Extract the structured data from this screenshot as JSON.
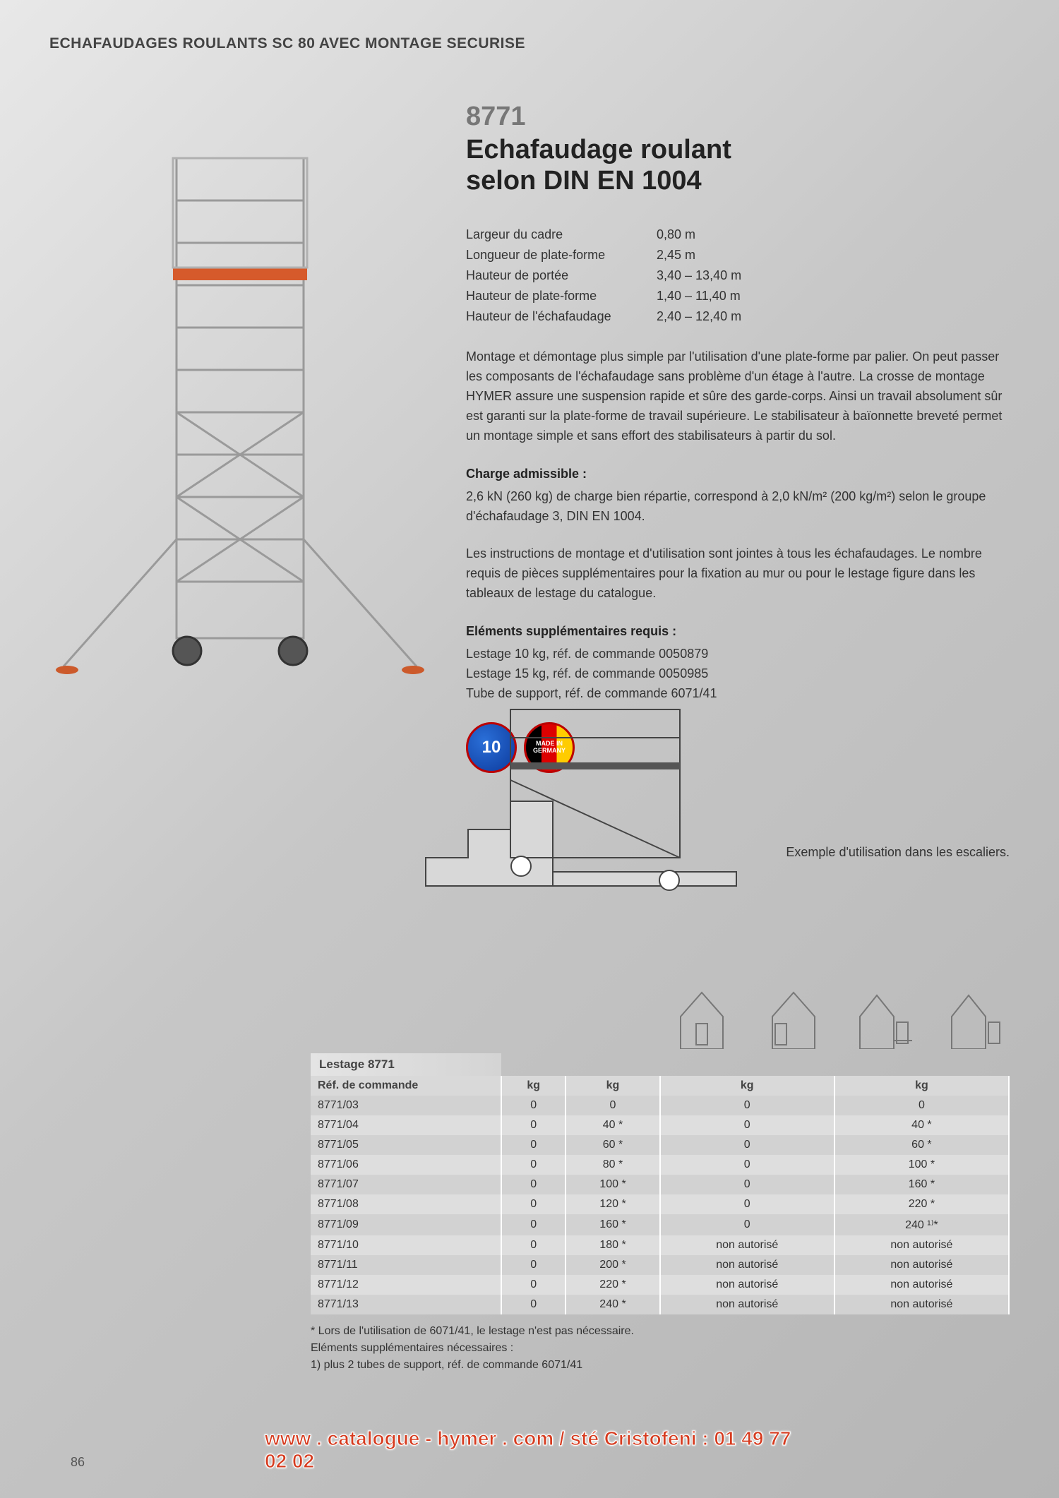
{
  "colors": {
    "page_bg_start": "#e8e8e8",
    "page_bg_end": "#b5b5b5",
    "text": "#333333",
    "heading_gray": "#777777",
    "accent_red": "#d63b1f",
    "table_row_light": "#dedede",
    "table_row_dark": "#d2d2d2",
    "table_header_bg": "#d9d9d9"
  },
  "header": {
    "title": "ECHAFAUDAGES ROULANTS SC 80 AVEC MONTAGE SECURISE"
  },
  "product": {
    "code": "8771",
    "title_line1": "Echafaudage roulant",
    "title_line2": "selon DIN EN 1004"
  },
  "specs": [
    {
      "label": "Largeur du cadre",
      "value": "0,80 m"
    },
    {
      "label": "Longueur de plate-forme",
      "value": "2,45 m"
    },
    {
      "label": "Hauteur de portée",
      "value": "3,40 – 13,40 m"
    },
    {
      "label": "Hauteur de plate-forme",
      "value": "1,40 – 11,40 m"
    },
    {
      "label": "Hauteur de l'échafaudage",
      "value": "2,40 – 12,40 m"
    }
  ],
  "description1": "Montage et démontage plus simple par l'utilisation d'une plate-forme par palier. On peut passer les composants de l'échafaudage sans problème d'un étage à l'autre. La crosse de montage HYMER assure une suspension rapide et sûre des garde-corps. Ainsi un travail absolument sûr est garanti sur la plate-forme de travail supérieure. Le stabilisateur à baïonnette breveté permet un montage simple et sans effort des stabilisateurs à partir du sol.",
  "charge": {
    "heading": "Charge admissible :",
    "text": "2,6 kN (260 kg) de charge bien répartie, correspond à 2,0 kN/m² (200 kg/m²) selon le groupe d'échafaudage 3, DIN EN 1004."
  },
  "description2": "Les instructions de montage et d'utilisation sont jointes à tous les échafaudages. Le nombre requis de pièces supplémentaires pour la fixation au mur ou pour le lestage figure dans les tableaux de lestage du catalogue.",
  "supplements": {
    "heading": "Eléments supplémentaires requis :",
    "lines": [
      "Lestage 10 kg, réf. de commande 0050879",
      "Lestage 15 kg, réf. de commande 0050985",
      "Tube de support, réf. de commande 6071/41"
    ]
  },
  "badge_ten": "10",
  "badge_flag": "MADE IN GERMANY",
  "stairs_caption": "Exemple d'utilisation dans les escaliers.",
  "lestage": {
    "title": "Lestage 8771",
    "header": "Réf. de commande",
    "unit": "kg",
    "rows": [
      {
        "ref": "8771/03",
        "c1": "0",
        "c2": "0",
        "c3": "0",
        "c4": "0"
      },
      {
        "ref": "8771/04",
        "c1": "0",
        "c2": "40 *",
        "c3": "0",
        "c4": "40 *"
      },
      {
        "ref": "8771/05",
        "c1": "0",
        "c2": "60 *",
        "c3": "0",
        "c4": "60 *"
      },
      {
        "ref": "8771/06",
        "c1": "0",
        "c2": "80 *",
        "c3": "0",
        "c4": "100 *"
      },
      {
        "ref": "8771/07",
        "c1": "0",
        "c2": "100 *",
        "c3": "0",
        "c4": "160 *"
      },
      {
        "ref": "8771/08",
        "c1": "0",
        "c2": "120 *",
        "c3": "0",
        "c4": "220 *"
      },
      {
        "ref": "8771/09",
        "c1": "0",
        "c2": "160 *",
        "c3": "0",
        "c4": "240 ¹⁾*"
      },
      {
        "ref": "8771/10",
        "c1": "0",
        "c2": "180 *",
        "c3": "non autorisé",
        "c4": "non autorisé"
      },
      {
        "ref": "8771/11",
        "c1": "0",
        "c2": "200 *",
        "c3": "non autorisé",
        "c4": "non autorisé"
      },
      {
        "ref": "8771/12",
        "c1": "0",
        "c2": "220 *",
        "c3": "non autorisé",
        "c4": "non autorisé"
      },
      {
        "ref": "8771/13",
        "c1": "0",
        "c2": "240 *",
        "c3": "non autorisé",
        "c4": "non autorisé"
      }
    ]
  },
  "footnotes": [
    "* Lors de l'utilisation de 6071/41, le lestage n'est pas nécessaire.",
    "Eléments supplémentaires nécessaires :",
    "1) plus 2 tubes de support, réf. de commande 6071/41"
  ],
  "page_number": "86",
  "footer_url": "www . catalogue - hymer . com / sté Cristofeni : 01 49 77 02 02"
}
